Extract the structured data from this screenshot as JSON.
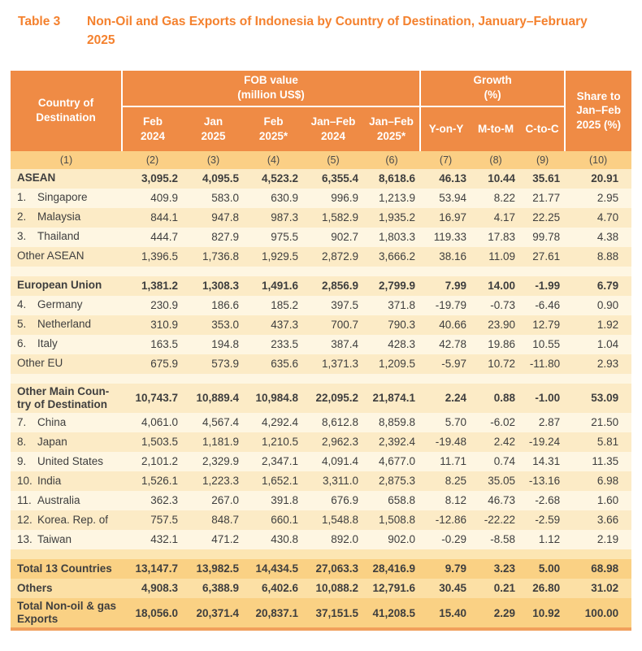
{
  "title": {
    "label": "Table 3",
    "text": "Non-Oil and Gas Exports of Indonesia by Country of Destination, January–February 2025"
  },
  "colors": {
    "title_text": "#F4812E",
    "header_bg": "#EF8B45",
    "column_number_row_bg": "#FBCF85",
    "body_row_dark": "#FCEBC6",
    "body_row_light": "#FEF6E2",
    "totals_row_dark": "#FAD184",
    "totals_row_light": "#FCE0A5",
    "bottom_border": "#F1A05C",
    "body_text": "#3e3e3e"
  },
  "table": {
    "header": {
      "country": "Country of\nDestination",
      "fob_group": "FOB value\n(million US$)",
      "growth_group": "Growth\n(%)",
      "share": "Share to\nJan–Feb\n2025 (%)",
      "sub": [
        "Feb\n2024",
        "Jan\n2025",
        "Feb\n2025*",
        "Jan–Feb\n2024",
        "Jan–Feb\n2025*",
        "Y-on-Y",
        "M-to-M",
        "C-to-C"
      ],
      "nums": [
        "(1)",
        "(2)",
        "(3)",
        "(4)",
        "(5)",
        "(6)",
        "(7)",
        "(8)",
        "(9)",
        "(10)"
      ]
    },
    "sections": [
      {
        "name": "asean",
        "palette": "body",
        "rows": [
          {
            "style": "group",
            "label": "ASEAN",
            "values": [
              "3,095.2",
              "4,095.5",
              "4,523.2",
              "6,355.4",
              "8,618.6",
              "46.13",
              "10.44",
              "35.61",
              "20.91"
            ]
          },
          {
            "style": "item",
            "num": "1.",
            "label": "Singapore",
            "values": [
              "409.9",
              "583.0",
              "630.9",
              "996.9",
              "1,213.9",
              "53.94",
              "8.22",
              "21.77",
              "2.95"
            ]
          },
          {
            "style": "item",
            "num": "2.",
            "label": "Malaysia",
            "values": [
              "844.1",
              "947.8",
              "987.3",
              "1,582.9",
              "1,935.2",
              "16.97",
              "4.17",
              "22.25",
              "4.70"
            ]
          },
          {
            "style": "item",
            "num": "3.",
            "label": "Thailand",
            "values": [
              "444.7",
              "827.9",
              "975.5",
              "902.7",
              "1,803.3",
              "119.33",
              "17.83",
              "99.78",
              "4.38"
            ]
          },
          {
            "style": "plain",
            "label": "Other ASEAN",
            "values": [
              "1,396.5",
              "1,736.8",
              "1,929.5",
              "2,872.9",
              "3,666.2",
              "38.16",
              "11.09",
              "27.61",
              "8.88"
            ]
          }
        ]
      },
      {
        "name": "european-union",
        "palette": "body",
        "rows": [
          {
            "style": "group",
            "label": "European Union",
            "values": [
              "1,381.2",
              "1,308.3",
              "1,491.6",
              "2,856.9",
              "2,799.9",
              "7.99",
              "14.00",
              "-1.99",
              "6.79"
            ]
          },
          {
            "style": "item",
            "num": "4.",
            "label": "Germany",
            "values": [
              "230.9",
              "186.6",
              "185.2",
              "397.5",
              "371.8",
              "-19.79",
              "-0.73",
              "-6.46",
              "0.90"
            ]
          },
          {
            "style": "item",
            "num": "5.",
            "label": "Netherland",
            "values": [
              "310.9",
              "353.0",
              "437.3",
              "700.7",
              "790.3",
              "40.66",
              "23.90",
              "12.79",
              "1.92"
            ]
          },
          {
            "style": "item",
            "num": "6.",
            "label": "Italy",
            "values": [
              "163.5",
              "194.8",
              "233.5",
              "387.4",
              "428.3",
              "42.78",
              "19.86",
              "10.55",
              "1.04"
            ]
          },
          {
            "style": "plain",
            "label": "Other EU",
            "values": [
              "675.9",
              "573.9",
              "635.6",
              "1,371.3",
              "1,209.5",
              "-5.97",
              "10.72",
              "-11.80",
              "2.93"
            ]
          }
        ]
      },
      {
        "name": "other-main-country",
        "palette": "body",
        "rows": [
          {
            "style": "group",
            "label": "Other Main Coun-\ntry of Destination",
            "values": [
              "10,743.7",
              "10,889.4",
              "10,984.8",
              "22,095.2",
              "21,874.1",
              "2.24",
              "0.88",
              "-1.00",
              "53.09"
            ]
          },
          {
            "style": "item",
            "num": "7.",
            "label": "China",
            "values": [
              "4,061.0",
              "4,567.4",
              "4,292.4",
              "8,612.8",
              "8,859.8",
              "5.70",
              "-6.02",
              "2.87",
              "21.50"
            ]
          },
          {
            "style": "item",
            "num": "8.",
            "label": "Japan",
            "values": [
              "1,503.5",
              "1,181.9",
              "1,210.5",
              "2,962.3",
              "2,392.4",
              "-19.48",
              "2.42",
              "-19.24",
              "5.81"
            ]
          },
          {
            "style": "item",
            "num": "9.",
            "label": "United States",
            "values": [
              "2,101.2",
              "2,329.9",
              "2,347.1",
              "4,091.4",
              "4,677.0",
              "11.71",
              "0.74",
              "14.31",
              "11.35"
            ]
          },
          {
            "style": "item",
            "num": "10.",
            "label": "India",
            "values": [
              "1,526.1",
              "1,223.3",
              "1,652.1",
              "3,311.0",
              "2,875.3",
              "8.25",
              "35.05",
              "-13.16",
              "6.98"
            ]
          },
          {
            "style": "item",
            "num": "11.",
            "label": "Australia",
            "values": [
              "362.3",
              "267.0",
              "391.8",
              "676.9",
              "658.8",
              "8.12",
              "46.73",
              "-2.68",
              "1.60"
            ]
          },
          {
            "style": "item",
            "num": "12.",
            "label": "Korea. Rep. of",
            "values": [
              "757.5",
              "848.7",
              "660.1",
              "1,548.8",
              "1,508.8",
              "-12.86",
              "-22.22",
              "-2.59",
              "3.66"
            ]
          },
          {
            "style": "item",
            "num": "13.",
            "label": "Taiwan",
            "values": [
              "432.1",
              "471.2",
              "430.8",
              "892.0",
              "902.0",
              "-0.29",
              "-8.58",
              "1.12",
              "2.19"
            ]
          }
        ]
      },
      {
        "name": "totals",
        "palette": "totals",
        "rows": [
          {
            "style": "total",
            "label": "Total 13 Countries",
            "values": [
              "13,147.7",
              "13,982.5",
              "14,434.5",
              "27,063.3",
              "28,416.9",
              "9.79",
              "3.23",
              "5.00",
              "68.98"
            ]
          },
          {
            "style": "total",
            "label": "Others",
            "values": [
              "4,908.3",
              "6,388.9",
              "6,402.6",
              "10,088.2",
              "12,791.6",
              "30.45",
              "0.21",
              "26.80",
              "31.02"
            ]
          },
          {
            "style": "total",
            "label": "Total Non-oil & gas\nExports",
            "values": [
              "18,056.0",
              "20,371.4",
              "20,837.1",
              "37,151.5",
              "41,208.5",
              "15.40",
              "2.29",
              "10.92",
              "100.00"
            ]
          }
        ]
      }
    ]
  }
}
